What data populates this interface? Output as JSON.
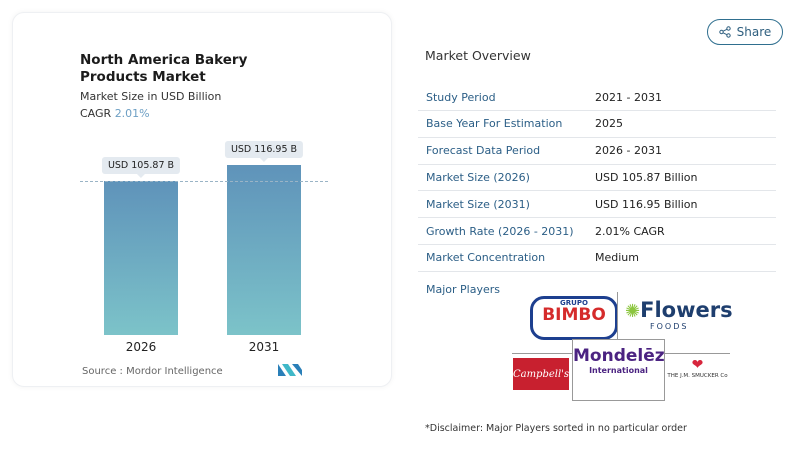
{
  "header": {
    "share_label": "Share",
    "share_icon": "share-icon"
  },
  "chart_data": {
    "type": "bar",
    "title": "North America Bakery Products Market",
    "subtitle": "Market Size in USD Billion",
    "cagr_label": "CAGR",
    "cagr_value": "2.01%",
    "categories": [
      "2026",
      "2031"
    ],
    "values": [
      105.87,
      116.95
    ],
    "data_labels": [
      "USD 105.87 B",
      "USD 116.95 B"
    ],
    "ylim": [
      0,
      120
    ],
    "grid": false,
    "reference_line": 105.87,
    "colors": {
      "bar_top": "#5f93ba",
      "bar_bottom": "#7cc3c9",
      "accent": "#6d9fc4"
    },
    "source": "Source :  Mordor Intelligence"
  },
  "overview": {
    "title": "Market Overview",
    "rows": [
      {
        "label": "Study Period",
        "value": "2021 - 2031"
      },
      {
        "label": "Base Year For Estimation",
        "value": "2025"
      },
      {
        "label": "Forecast Data Period",
        "value": "2026 - 2031"
      },
      {
        "label": "Market Size (2026)",
        "value": "USD 105.87 Billion"
      },
      {
        "label": "Market Size (2031)",
        "value": "USD 116.95 Billion"
      },
      {
        "label": "Growth Rate (2026 - 2031)",
        "value": "2.01% CAGR"
      },
      {
        "label": "Market Concentration",
        "value": "Medium"
      }
    ],
    "major_players_label": "Major Players",
    "players": [
      "GRUPO BIMBO",
      "Flowers FOODS",
      "Campbell's",
      "Mondelēz International",
      "THE J.M. SMUCKER Co"
    ],
    "disclaimer": "*Disclaimer: Major Players sorted in no particular order"
  }
}
